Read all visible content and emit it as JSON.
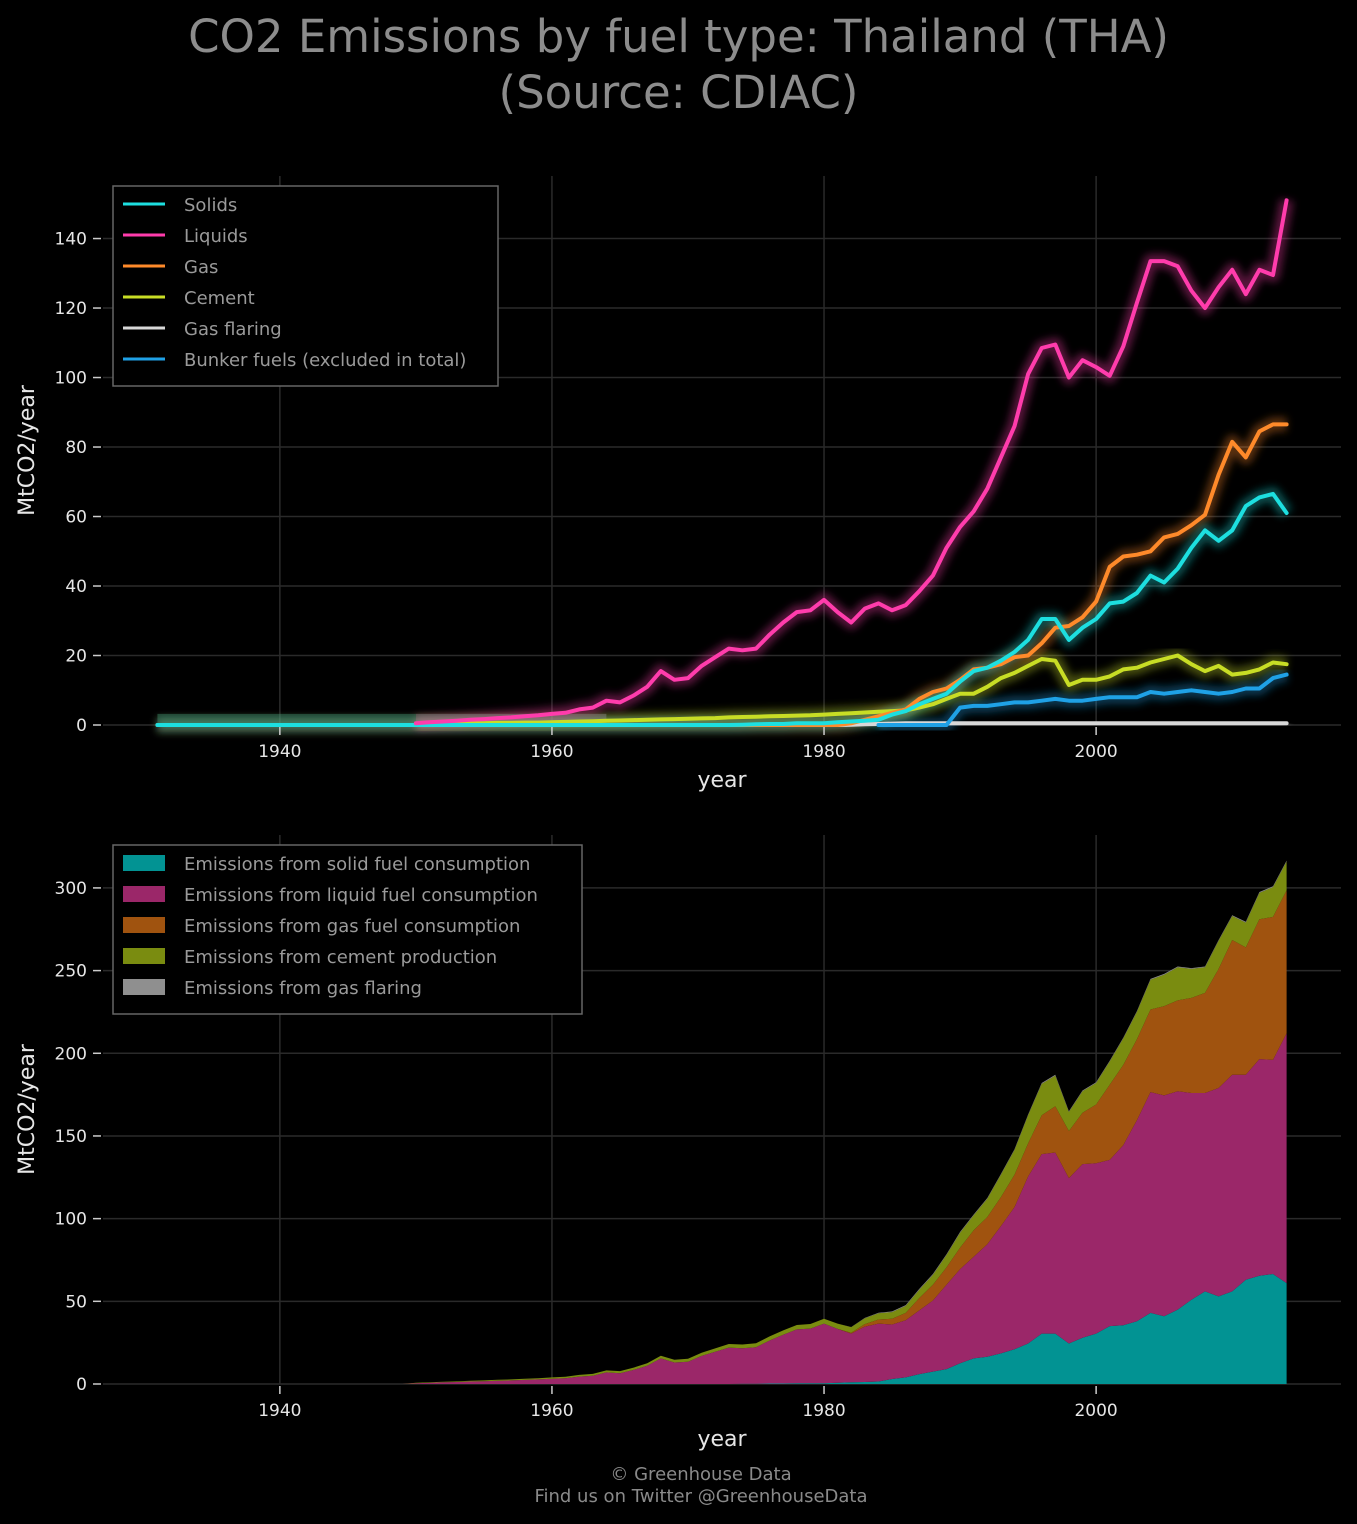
{
  "title": {
    "line1": "CO2 Emissions by fuel type: Thailand (THA)",
    "line2": "(Source: CDIAC)"
  },
  "footer": {
    "line1": "© Greenhouse Data",
    "line2": "Find us on Twitter @GreenhouseData"
  },
  "colors": {
    "background": "#000000",
    "grid": "#2a2a2a",
    "solids": "#1ddfe0",
    "liquids": "#ff3cac",
    "gas": "#ff8a2a",
    "cement": "#c8dd25",
    "flaring": "#d8d8d8",
    "bunker": "#1fa1e6",
    "area_solid": "#029393",
    "area_liquid": "#9b2769",
    "area_gas": "#a0530f",
    "area_cement": "#7a8c10",
    "area_flaring": "#8f8f8f"
  },
  "chart_data": [
    {
      "type": "line",
      "title": "",
      "xlabel": "year",
      "ylabel": "MtCO2/year",
      "xlim": [
        1927,
        2018
      ],
      "ylim": [
        0,
        158
      ],
      "xticks": [
        1940,
        1960,
        1980,
        2000
      ],
      "yticks": [
        0,
        20,
        40,
        60,
        80,
        100,
        120,
        140
      ],
      "grid": true,
      "legend_position": "top-left",
      "legend": [
        "Solids",
        "Liquids",
        "Gas",
        "Cement",
        "Gas flaring",
        "Bunker fuels (excluded in total)"
      ],
      "x": [
        1931,
        1932,
        1933,
        1934,
        1935,
        1936,
        1937,
        1938,
        1939,
        1940,
        1941,
        1942,
        1943,
        1944,
        1945,
        1946,
        1947,
        1948,
        1949,
        1950,
        1951,
        1952,
        1953,
        1954,
        1955,
        1956,
        1957,
        1958,
        1959,
        1960,
        1961,
        1962,
        1963,
        1964,
        1965,
        1966,
        1967,
        1968,
        1969,
        1970,
        1971,
        1972,
        1973,
        1974,
        1975,
        1976,
        1977,
        1978,
        1979,
        1980,
        1981,
        1982,
        1983,
        1984,
        1985,
        1986,
        1987,
        1988,
        1989,
        1990,
        1991,
        1992,
        1993,
        1994,
        1995,
        1996,
        1997,
        1998,
        1999,
        2000,
        2001,
        2002,
        2003,
        2004,
        2005,
        2006,
        2007,
        2008,
        2009,
        2010,
        2011,
        2012,
        2013,
        2014
      ],
      "series": [
        {
          "name": "Solids",
          "color_key": "solids",
          "values": [
            0,
            0,
            0,
            0,
            0,
            0,
            0,
            0,
            0,
            0,
            0,
            0,
            0,
            0,
            0,
            0,
            0,
            0,
            0,
            0,
            0,
            0,
            0,
            0,
            0,
            0,
            0,
            0,
            0,
            0,
            0,
            0,
            0,
            0,
            0,
            0,
            0,
            0,
            0,
            0,
            0,
            0,
            0,
            0.1,
            0.2,
            0.3,
            0.3,
            0.5,
            0.5,
            0.5,
            0.8,
            1,
            1.2,
            1.5,
            3,
            4,
            6,
            7.5,
            9,
            12.5,
            15.5,
            16.5,
            18.5,
            21,
            24.5,
            30.5,
            30.5,
            24.5,
            28,
            30.5,
            35,
            35.5,
            38,
            43,
            41,
            45,
            51,
            56,
            53,
            56,
            63,
            65.5,
            66.5,
            61
          ]
        },
        {
          "name": "Liquids",
          "color_key": "liquids",
          "values": [
            0,
            0,
            0,
            0,
            0,
            0,
            0,
            0,
            0,
            0,
            0,
            0,
            0,
            0,
            0,
            0,
            0,
            0,
            0,
            0.5,
            0.8,
            1,
            1.2,
            1.5,
            1.7,
            2,
            2.2,
            2.5,
            2.8,
            3.2,
            3.5,
            4.5,
            5,
            7,
            6.5,
            8.5,
            11,
            15.5,
            13,
            13.5,
            17,
            19.5,
            22,
            21.5,
            22,
            26,
            29.5,
            32.5,
            33,
            36,
            32.5,
            29.5,
            33.5,
            35,
            33,
            34.5,
            38.5,
            43,
            51,
            57,
            61.5,
            68,
            77,
            86,
            101,
            108.5,
            109.5,
            100,
            105,
            103,
            100.5,
            109,
            121.5,
            133.5,
            133.5,
            132,
            125,
            120,
            126,
            131,
            124,
            131,
            129.5,
            151
          ]
        },
        {
          "name": "Gas",
          "color_key": "gas",
          "values": [
            0,
            0,
            0,
            0,
            0,
            0,
            0,
            0,
            0,
            0,
            0,
            0,
            0,
            0,
            0,
            0,
            0,
            0,
            0,
            0,
            0,
            0,
            0,
            0,
            0,
            0,
            0,
            0,
            0,
            0,
            0,
            0,
            0,
            0,
            0,
            0,
            0,
            0,
            0,
            0,
            0,
            0,
            0,
            0,
            0,
            0,
            0,
            0,
            0,
            0,
            0,
            0.5,
            1.5,
            2.5,
            3.5,
            4.5,
            7.5,
            9.5,
            10.5,
            13,
            16,
            16.5,
            17.5,
            19.5,
            20,
            23.5,
            28,
            28.5,
            31,
            35.5,
            45.5,
            48.5,
            49,
            50,
            54,
            55,
            57.5,
            60.5,
            72,
            81.5,
            77,
            84.5,
            86.5,
            86.5
          ]
        },
        {
          "name": "Cement",
          "color_key": "cement",
          "values": [
            0,
            0,
            0,
            0,
            0,
            0,
            0,
            0,
            0,
            0,
            0,
            0,
            0,
            0,
            0,
            0,
            0,
            0,
            0,
            0.3,
            0.3,
            0.4,
            0.4,
            0.5,
            0.5,
            0.6,
            0.6,
            0.7,
            0.7,
            0.8,
            0.9,
            1,
            1.1,
            1.2,
            1.3,
            1.4,
            1.5,
            1.6,
            1.7,
            1.8,
            1.9,
            2,
            2.2,
            2.3,
            2.4,
            2.5,
            2.6,
            2.7,
            2.8,
            3,
            3.2,
            3.4,
            3.6,
            3.8,
            4,
            4.2,
            5,
            6,
            7.5,
            9,
            9,
            11,
            13.5,
            15,
            17,
            19,
            18.5,
            11.5,
            13,
            13,
            14,
            16,
            16.5,
            18,
            19,
            20,
            17.5,
            15.5,
            17,
            14.5,
            15,
            16,
            18,
            17.5
          ]
        },
        {
          "name": "Gas flaring",
          "color_key": "flaring",
          "values": [
            0,
            0,
            0,
            0,
            0,
            0,
            0,
            0,
            0,
            0,
            0,
            0,
            0,
            0,
            0,
            0,
            0,
            0,
            0,
            0,
            0,
            0,
            0,
            0,
            0,
            0,
            0,
            0,
            0,
            0,
            0,
            0,
            0,
            0,
            0,
            0,
            0,
            0,
            0,
            0,
            0,
            0,
            0,
            0,
            0,
            0,
            0,
            0,
            0,
            0,
            0,
            0.1,
            0.2,
            0.3,
            0.4,
            0.5,
            0.5,
            0.5,
            0.5,
            0.5,
            0.5,
            0.5,
            0.5,
            0.5,
            0.5,
            0.5,
            0.5,
            0.5,
            0.5,
            0.5,
            0.5,
            0.5,
            0.5,
            0.5,
            0.5,
            0.5,
            0.5,
            0.5,
            0.5,
            0.5,
            0.5,
            0.5,
            0.5,
            0.5
          ]
        },
        {
          "name": "Bunker fuels (excluded in total)",
          "color_key": "bunker",
          "values": [
            0,
            0,
            0,
            0,
            0,
            0,
            0,
            0,
            0,
            0,
            0,
            0,
            0,
            0,
            0,
            0,
            0,
            0,
            0,
            0,
            0,
            0,
            0,
            0,
            0,
            0,
            0,
            0,
            0,
            0,
            0,
            0,
            0,
            0,
            0,
            0,
            0,
            0,
            0,
            0,
            0,
            0,
            0,
            0,
            0,
            0,
            0,
            0,
            0,
            0,
            0,
            0,
            0,
            0,
            0,
            0,
            0,
            0,
            0,
            5,
            5.5,
            5.5,
            6,
            6.5,
            6.5,
            7,
            7.5,
            7,
            7,
            7.5,
            8,
            8,
            8,
            9.5,
            9,
            9.5,
            10,
            9.5,
            9,
            9.5,
            10.5,
            10.5,
            13.5,
            14.5
          ]
        }
      ]
    },
    {
      "type": "area",
      "stacked": true,
      "title": "",
      "xlabel": "year",
      "ylabel": "MtCO2/year",
      "xlim": [
        1927,
        2018
      ],
      "ylim": [
        0,
        332
      ],
      "xticks": [
        1940,
        1960,
        1980,
        2000
      ],
      "yticks": [
        0,
        50,
        100,
        150,
        200,
        250,
        300
      ],
      "grid": true,
      "legend_position": "top-left",
      "legend": [
        "Emissions from solid fuel consumption",
        "Emissions from liquid fuel consumption",
        "Emissions from gas fuel consumption",
        "Emissions from cement production",
        "Emissions from gas flaring"
      ],
      "series_from_line_chart": [
        "Solids",
        "Liquids",
        "Gas",
        "Cement",
        "Gas flaring"
      ],
      "area_color_keys": [
        "area_solid",
        "area_liquid",
        "area_gas",
        "area_cement",
        "area_flaring"
      ]
    }
  ]
}
